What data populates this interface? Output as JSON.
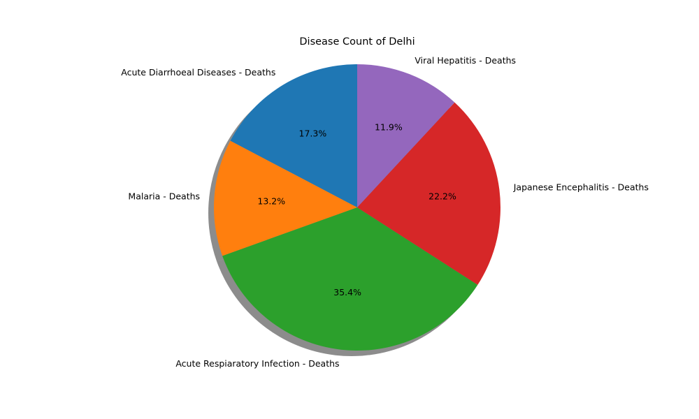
{
  "chart_data": {
    "type": "pie",
    "title": "Disease Count of Delhi",
    "start_angle_deg": 90,
    "direction": "counterclockwise",
    "shadow": true,
    "slices": [
      {
        "label": "Acute Diarrhoeal Diseases - Deaths",
        "percent": 17.3,
        "display": "17.3%",
        "color": "#1f77b4"
      },
      {
        "label": "Malaria - Deaths",
        "percent": 13.2,
        "display": "13.2%",
        "color": "#ff7f0e"
      },
      {
        "label": "Acute Respiaratory Infection - Deaths",
        "percent": 35.4,
        "display": "35.4%",
        "color": "#2ca02c"
      },
      {
        "label": "Japanese Encephalitis - Deaths",
        "percent": 22.2,
        "display": "22.2%",
        "color": "#d62728"
      },
      {
        "label": "Viral Hepatitis - Deaths",
        "percent": 11.9,
        "display": "11.9%",
        "color": "#9467bd"
      }
    ]
  }
}
